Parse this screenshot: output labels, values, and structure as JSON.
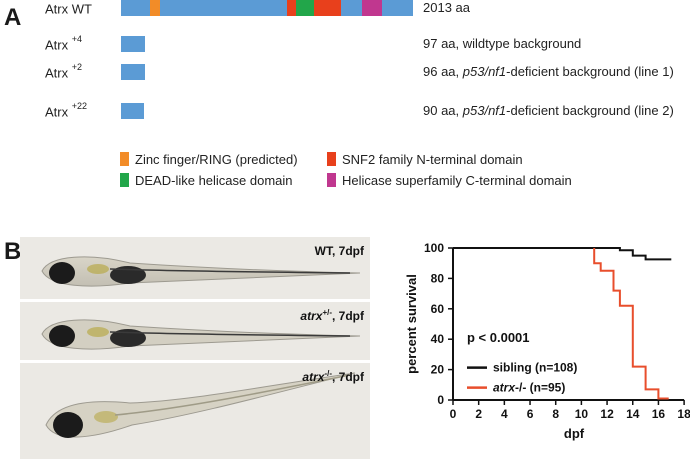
{
  "panel_a": {
    "letter": "A",
    "rows": [
      {
        "label": "Atrx WT",
        "sup": "",
        "note_plain": "2013 aa",
        "note_italic": "",
        "note_tail": ""
      },
      {
        "label": "Atrx ",
        "sup": "+4",
        "note_plain": "97 aa, wildtype background",
        "note_italic": "",
        "note_tail": ""
      },
      {
        "label": "Atrx ",
        "sup": "+2",
        "note_plain": "96 aa, ",
        "note_italic": "p53/nf1",
        "note_tail": "-deficient background (line 1)"
      },
      {
        "label": "Atrx ",
        "sup": "+22",
        "note_plain": "90 aa, ",
        "note_italic": "p53/nf1",
        "note_tail": "-deficient background (line 2)"
      }
    ],
    "protein_lengths_aa": [
      2013,
      97,
      96,
      90
    ],
    "legend": [
      {
        "label": "Zinc finger/RING (predicted)",
        "color": "#f28c28"
      },
      {
        "label": "SNF2 family N-terminal domain",
        "color": "#e8401c"
      },
      {
        "label": "DEAD-like helicase domain",
        "color": "#22a64a"
      },
      {
        "label": "Helicase superfamily C-terminal domain",
        "color": "#c0378f"
      }
    ],
    "colors": {
      "protein_bar": "#5b9bd5"
    }
  },
  "panel_b": {
    "letter": "B",
    "fish_panels": [
      {
        "label_italic": "",
        "label_plain": "WT, 7dpf",
        "sup": ""
      },
      {
        "label_italic": "atrx",
        "sup": "+/-",
        "label_plain": ", 7dpf"
      },
      {
        "label_italic": "atrx",
        "sup": "-/-",
        "label_plain": ", 7dpf"
      }
    ]
  },
  "chart_data": {
    "type": "line",
    "subtype": "kaplan-meier step",
    "title": "",
    "xlabel": "dpf",
    "ylabel": "percent survival",
    "xlim": [
      0,
      18
    ],
    "ylim": [
      0,
      100
    ],
    "xticks": [
      "0",
      "2",
      "4",
      "6",
      "8",
      "10",
      "12",
      "14",
      "16",
      "18"
    ],
    "yticks": [
      "0",
      "20",
      "40",
      "60",
      "80",
      "100"
    ],
    "annotation": "p < 0.0001",
    "legend_position": "bottom-left",
    "series": [
      {
        "name": "sibling (n=108)",
        "name_italic": "",
        "name_tail": "sibling (n=108)",
        "color": "#111111",
        "x": [
          0,
          13,
          13,
          14,
          14,
          15,
          15,
          17
        ],
        "y": [
          100,
          100,
          98.5,
          98.5,
          95,
          95,
          92.5,
          92.5
        ]
      },
      {
        "name": "atrx-/- (n=95)",
        "name_italic": "atrx",
        "name_tail": "-/- (n=95)",
        "color": "#e84e2c",
        "x": [
          11,
          11,
          11.5,
          11.5,
          12.5,
          12.5,
          13,
          13,
          14,
          14,
          15,
          15,
          16,
          16,
          16.8
        ],
        "y": [
          100,
          90,
          90,
          85,
          85,
          72,
          72,
          62,
          62,
          22,
          22,
          7,
          7,
          1,
          1
        ]
      }
    ]
  }
}
